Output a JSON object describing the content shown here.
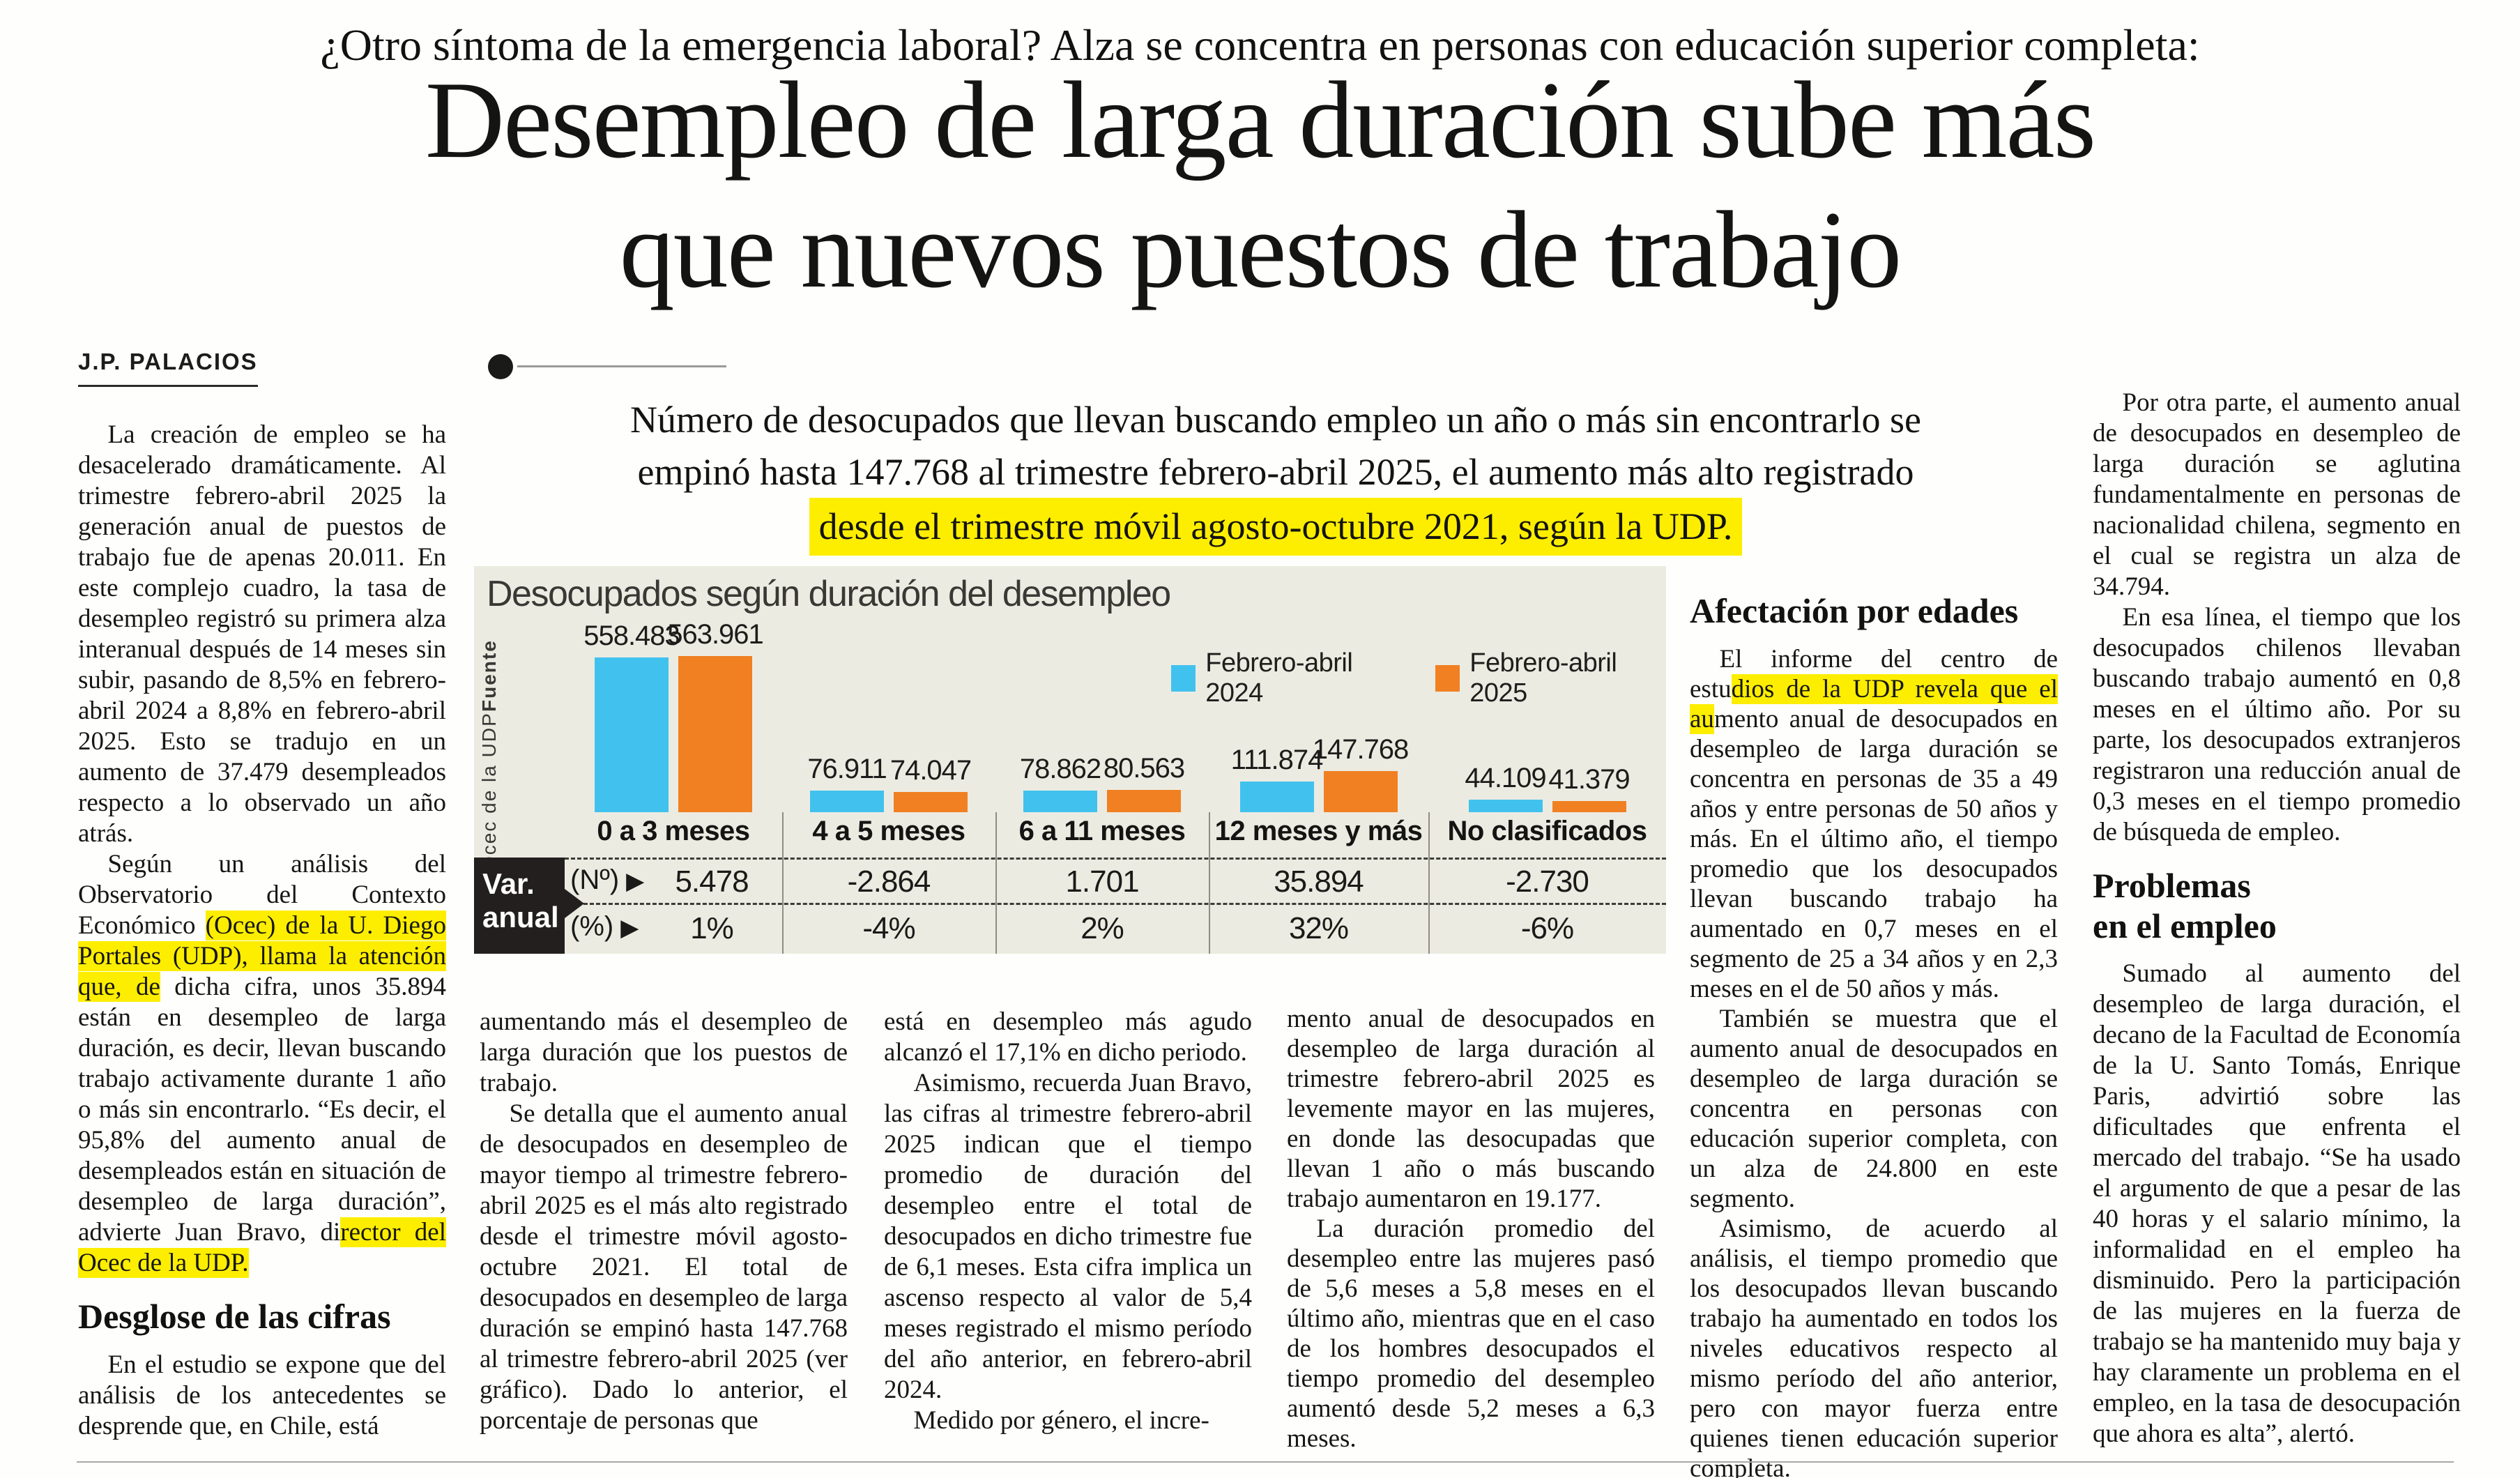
{
  "kicker": "¿Otro síntoma de la emergencia laboral? Alza se concentra en personas con educación superior completa:",
  "headline": {
    "line1": "Desempleo de larga duración sube más",
    "line2": "que nuevos puestos de trabajo"
  },
  "byline": "J.P. PALACIOS",
  "lede": {
    "line1": "Número de desocupados que llevan buscando empleo un año o más sin encontrarlo se",
    "line2": "empinó hasta 147.768 al trimestre febrero-abril 2025, el aumento más alto registrado",
    "line3": "desde el trimestre móvil agosto-octubre 2021, según la UDP."
  },
  "colors": {
    "highlight_yellow": "#fdee00",
    "chart_background": "#ecebe2",
    "series_2024_blue": "#41c2ee",
    "series_2025_orange": "#f08022",
    "variation_box_black": "#221f1e"
  },
  "chart_data": {
    "type": "bar",
    "title": "Desocupados según duración del desempleo",
    "source_label": "Fuente",
    "source": "Ocec de la UDP",
    "categories": [
      "0 a 3 meses",
      "4 a 5 meses",
      "6 a 11 meses",
      "12 meses y más",
      "No clasificados"
    ],
    "series": [
      {
        "name": "Febrero-abril 2024",
        "color": "#41c2ee",
        "values": [
          558483,
          76911,
          78862,
          111874,
          44109
        ],
        "labels": [
          "558.483",
          "76.911",
          "78.862",
          "111.874",
          "44.109"
        ]
      },
      {
        "name": "Febrero-abril 2025",
        "color": "#f08022",
        "values": [
          563961,
          74047,
          80563,
          147768,
          41379
        ],
        "labels": [
          "563.961",
          "74.047",
          "80.563",
          "147.768",
          "41.379"
        ]
      }
    ],
    "ylim": [
      0,
      563961
    ],
    "grid": false,
    "legend_position": "top-right",
    "annual_variation": {
      "box_label_line1": "Var.",
      "box_label_line2": "anual",
      "rows": [
        {
          "label": "(Nº)",
          "values": [
            "5.478",
            "-2.864",
            "1.701",
            "35.894",
            "-2.730"
          ]
        },
        {
          "label": "(%)",
          "values": [
            "1%",
            "-4%",
            "2%",
            "32%",
            "-6%"
          ]
        }
      ]
    }
  },
  "columns": {
    "col1": {
      "blocks": [
        {
          "type": "para",
          "segments": [
            {
              "t": "La creación de empleo se ha desacelerado dramáticamente. Al trimestre febrero-abril 2025 la generación anual de puestos de trabajo fue de apenas 20.011. En este complejo cuadro, la tasa de desempleo registró su primera alza interanual después de 14 meses sin subir, pasando de 8,5% en febrero-abril 2024 a 8,8% en febrero-abril 2025. Esto se tradujo en un aumento de 37.479 desempleados respecto a lo observado un año atrás."
            }
          ]
        },
        {
          "type": "para",
          "segments": [
            {
              "t": "Según un análisis del Observatorio del Contexto Económico "
            },
            {
              "t": "(Ocec) de la U. Diego Portales (UDP), llama la atención que, de",
              "h": true
            },
            {
              "t": " dicha cifra, unos 35.894 están en desempleo de larga duración, es decir, llevan buscando trabajo activamente durante 1 año o más sin encontrarlo. “Es decir, el 95,8% del aumento anual de desempleados están en situación de desempleo de larga duración”, advierte Juan Bravo, di"
            },
            {
              "t": "rector del Ocec de la UDP.",
              "h": true
            }
          ]
        },
        {
          "type": "heading",
          "lines": [
            "Desglose de las cifras"
          ]
        },
        {
          "type": "para",
          "segments": [
            {
              "t": "En el estudio se expone que del análisis de los antecedentes se desprende que, en Chile, está"
            }
          ]
        }
      ]
    },
    "col2": {
      "blocks": [
        {
          "type": "para",
          "noindent": true,
          "segments": [
            {
              "t": "aumentando más el desempleo de larga duración que los puestos de trabajo."
            }
          ]
        },
        {
          "type": "para",
          "segments": [
            {
              "t": "Se detalla que el aumento anual de desocupados en desempleo de mayor tiempo al trimestre febrero-abril 2025 es el más alto registrado desde el trimestre móvil agosto-octubre 2021. El total de desocupados en desempleo de larga duración se empinó hasta 147.768 al trimestre febrero-abril 2025 (ver gráfico). Dado lo anterior, el porcentaje de personas que"
            }
          ]
        }
      ]
    },
    "col3": {
      "blocks": [
        {
          "type": "para",
          "noindent": true,
          "segments": [
            {
              "t": "está en desempleo más agudo alcanzó el 17,1% en dicho periodo."
            }
          ]
        },
        {
          "type": "para",
          "segments": [
            {
              "t": "Asimismo, recuerda Juan Bravo, las cifras al trimestre febrero-abril 2025 indican que el tiempo promedio de duración del desempleo entre el total de desocupados en dicho trimestre fue de 6,1 meses. Esta cifra implica un ascenso respecto al valor de 5,4 meses registrado el mismo período del año anterior, en febrero-abril 2024."
            }
          ]
        },
        {
          "type": "para",
          "segments": [
            {
              "t": "Medido por género, el incre-"
            }
          ]
        }
      ]
    },
    "col4": {
      "blocks": [
        {
          "type": "para",
          "noindent": true,
          "segments": [
            {
              "t": "mento anual de desocupados en desempleo de larga duración al trimestre febrero-abril 2025 es levemente mayor en las mujeres, en donde las desocupadas que llevan 1 año o más buscando trabajo aumentaron en 19.177."
            }
          ]
        },
        {
          "type": "para",
          "segments": [
            {
              "t": "La duración promedio del desempleo entre las mujeres pasó de 5,6 meses a 5,8 meses en el último año, mientras que en el caso de los hombres desocupados el tiempo promedio del desempleo aumentó desde 5,2 meses a 6,3 meses."
            }
          ]
        }
      ]
    },
    "col5": {
      "blocks": [
        {
          "type": "heading",
          "lines": [
            "Afectación por edades"
          ]
        },
        {
          "type": "para",
          "segments": [
            {
              "t": "El informe del centro de estu"
            },
            {
              "t": "dios de la UDP revela que el au",
              "h": true
            },
            {
              "t": "mento anual de desocupados en desempleo de larga duración se concentra en personas de 35 a 49 años y entre personas de 50 años y más. En el último año, el tiempo promedio que los desocupados llevan buscando trabajo ha aumentado en 0,7 meses en el segmento de 25 a 34 años y en 2,3 meses en el de 50 años y más."
            }
          ]
        },
        {
          "type": "para",
          "segments": [
            {
              "t": "También se muestra que el aumento anual de desocupados en desempleo de larga duración se concentra en personas con educación superior completa, con un alza de 24.800 en este segmento."
            }
          ]
        },
        {
          "type": "para",
          "segments": [
            {
              "t": "Asimismo, de acuerdo al análisis, el tiempo promedio que los desocupados llevan buscando trabajo ha aumentado en todos los niveles educativos respecto al mismo período del año anterior, pero con mayor fuerza entre quienes tienen educación superior completa."
            }
          ]
        }
      ]
    },
    "col6": {
      "blocks": [
        {
          "type": "para",
          "segments": [
            {
              "t": "Por otra parte, el aumento anual de desocupados en desempleo de larga duración se aglutina fundamentalmente en personas de nacionalidad chilena, segmento en el cual se registra un alza de 34.794."
            }
          ]
        },
        {
          "type": "para",
          "segments": [
            {
              "t": "En esa línea, el tiempo que los desocupados chilenos llevaban buscando trabajo aumentó en 0,8 meses en el último año. Por su parte, los desocupados extranjeros registraron una reducción anual de 0,3 meses en el tiempo promedio de búsqueda de empleo."
            }
          ]
        },
        {
          "type": "heading",
          "lines": [
            "Problemas",
            "en el empleo"
          ]
        },
        {
          "type": "para",
          "segments": [
            {
              "t": "Sumado al aumento del desempleo de larga duración, el decano de la Facultad de Economía de la U. Santo Tomás, Enrique Paris, advirtió sobre las dificultades que enfrenta el mercado del trabajo. “Se ha usado el argumento de que a pesar de las 40 horas y el salario mínimo, la informalidad en el empleo ha disminuido. Pero la participación de las mujeres en la fuerza de trabajo se ha mantenido muy baja y hay claramente un problema en el empleo, en la tasa de desocupación que ahora es alta”, alertó."
            }
          ]
        }
      ]
    }
  }
}
